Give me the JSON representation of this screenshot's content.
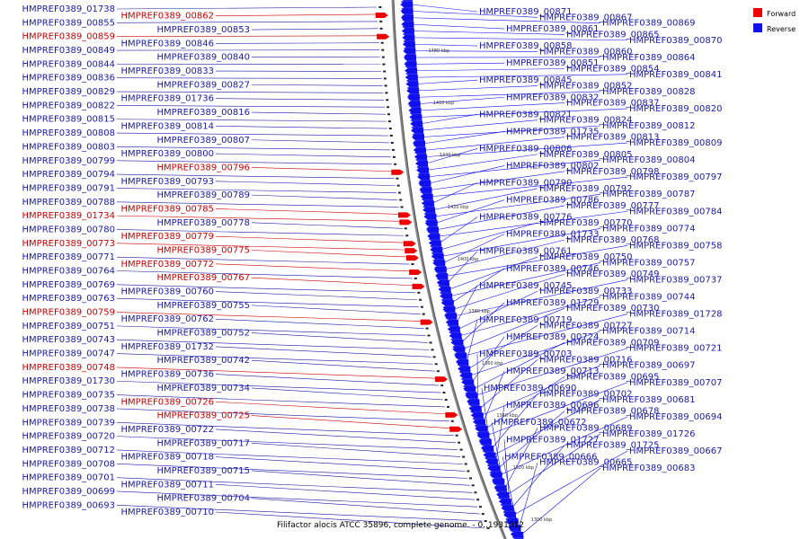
{
  "caption": "Filifactor alocis ATCC 35896, complete genome. - 0..1931012",
  "colors": {
    "forward": "#ee0000",
    "reverse": "#1010ee",
    "forward_text": "#cc0000",
    "reverse_text": "#1a1aaa",
    "backbone": "#888888"
  },
  "legend": [
    {
      "label": "Forward",
      "color": "#ee0000"
    },
    {
      "label": "Reverse",
      "color": "#1010ee"
    }
  ],
  "ticks": [
    "1480 kbp",
    "1460 kbp",
    "1440 kbp",
    "1420 kbp",
    "1400 kbp",
    "1380 kbp",
    "1360 kbp",
    "1340 kbp",
    "1320 kbp",
    "1300 kbp"
  ],
  "genes_left": [
    {
      "name": "HMPREF0389_01738",
      "strand": "reverse"
    },
    {
      "name": "HMPREF0389_00862",
      "strand": "forward"
    },
    {
      "name": "HMPREF0389_00855",
      "strand": "reverse"
    },
    {
      "name": "HMPREF0389_00853",
      "strand": "reverse"
    },
    {
      "name": "HMPREF0389_00859",
      "strand": "forward"
    },
    {
      "name": "HMPREF0389_00846",
      "strand": "reverse"
    },
    {
      "name": "HMPREF0389_00849",
      "strand": "reverse"
    },
    {
      "name": "HMPREF0389_00840",
      "strand": "reverse"
    },
    {
      "name": "HMPREF0389_00844",
      "strand": "reverse"
    },
    {
      "name": "HMPREF0389_00833",
      "strand": "reverse"
    },
    {
      "name": "HMPREF0389_00836",
      "strand": "reverse"
    },
    {
      "name": "HMPREF0389_00827",
      "strand": "reverse"
    },
    {
      "name": "HMPREF0389_00829",
      "strand": "reverse"
    },
    {
      "name": "HMPREF0389_01736",
      "strand": "reverse"
    },
    {
      "name": "HMPREF0389_00822",
      "strand": "reverse"
    },
    {
      "name": "HMPREF0389_00816",
      "strand": "reverse"
    },
    {
      "name": "HMPREF0389_00815",
      "strand": "reverse"
    },
    {
      "name": "HMPREF0389_00814",
      "strand": "reverse"
    },
    {
      "name": "HMPREF0389_00808",
      "strand": "reverse"
    },
    {
      "name": "HMPREF0389_00807",
      "strand": "reverse"
    },
    {
      "name": "HMPREF0389_00803",
      "strand": "reverse"
    },
    {
      "name": "HMPREF0389_00800",
      "strand": "reverse"
    },
    {
      "name": "HMPREF0389_00799",
      "strand": "reverse"
    },
    {
      "name": "HMPREF0389_00796",
      "strand": "forward"
    },
    {
      "name": "HMPREF0389_00794",
      "strand": "reverse"
    },
    {
      "name": "HMPREF0389_00793",
      "strand": "reverse"
    },
    {
      "name": "HMPREF0389_00791",
      "strand": "reverse"
    },
    {
      "name": "HMPREF0389_00789",
      "strand": "reverse"
    },
    {
      "name": "HMPREF0389_00788",
      "strand": "reverse"
    },
    {
      "name": "HMPREF0389_00785",
      "strand": "forward"
    },
    {
      "name": "HMPREF0389_01734",
      "strand": "forward"
    },
    {
      "name": "HMPREF0389_00778",
      "strand": "reverse"
    },
    {
      "name": "HMPREF0389_00780",
      "strand": "reverse"
    },
    {
      "name": "HMPREF0389_00779",
      "strand": "forward"
    },
    {
      "name": "HMPREF0389_00773",
      "strand": "forward"
    },
    {
      "name": "HMPREF0389_00775",
      "strand": "forward"
    },
    {
      "name": "HMPREF0389_00771",
      "strand": "reverse"
    },
    {
      "name": "HMPREF0389_00772",
      "strand": "forward"
    },
    {
      "name": "HMPREF0389_00764",
      "strand": "reverse"
    },
    {
      "name": "HMPREF0389_00767",
      "strand": "forward"
    },
    {
      "name": "HMPREF0389_00769",
      "strand": "reverse"
    },
    {
      "name": "HMPREF0389_00760",
      "strand": "reverse"
    },
    {
      "name": "HMPREF0389_00763",
      "strand": "reverse"
    },
    {
      "name": "HMPREF0389_00755",
      "strand": "reverse"
    },
    {
      "name": "HMPREF0389_00759",
      "strand": "forward"
    },
    {
      "name": "HMPREF0389_00762",
      "strand": "reverse"
    },
    {
      "name": "HMPREF0389_00751",
      "strand": "reverse"
    },
    {
      "name": "HMPREF0389_00752",
      "strand": "reverse"
    },
    {
      "name": "HMPREF0389_00743",
      "strand": "reverse"
    },
    {
      "name": "HMPREF0389_01732",
      "strand": "reverse"
    },
    {
      "name": "HMPREF0389_00747",
      "strand": "reverse"
    },
    {
      "name": "HMPREF0389_00742",
      "strand": "reverse"
    },
    {
      "name": "HMPREF0389_00748",
      "strand": "forward"
    },
    {
      "name": "HMPREF0389_00736",
      "strand": "reverse"
    },
    {
      "name": "HMPREF0389_01730",
      "strand": "reverse"
    },
    {
      "name": "HMPREF0389_00734",
      "strand": "reverse"
    },
    {
      "name": "HMPREF0389_00735",
      "strand": "reverse"
    },
    {
      "name": "HMPREF0389_00726",
      "strand": "forward"
    },
    {
      "name": "HMPREF0389_00738",
      "strand": "reverse"
    },
    {
      "name": "HMPREF0389_00725",
      "strand": "forward"
    },
    {
      "name": "HMPREF0389_00739",
      "strand": "reverse"
    },
    {
      "name": "HMPREF0389_00722",
      "strand": "reverse"
    },
    {
      "name": "HMPREF0389_00720",
      "strand": "reverse"
    },
    {
      "name": "HMPREF0389_00717",
      "strand": "reverse"
    },
    {
      "name": "HMPREF0389_00712",
      "strand": "reverse"
    },
    {
      "name": "HMPREF0389_00718",
      "strand": "reverse"
    },
    {
      "name": "HMPREF0389_00708",
      "strand": "reverse"
    },
    {
      "name": "HMPREF0389_00715",
      "strand": "reverse"
    },
    {
      "name": "HMPREF0389_00701",
      "strand": "reverse"
    },
    {
      "name": "HMPREF0389_00711",
      "strand": "reverse"
    },
    {
      "name": "HMPREF0389_00699",
      "strand": "reverse"
    },
    {
      "name": "HMPREF0389_00704",
      "strand": "reverse"
    },
    {
      "name": "HMPREF0389_00693",
      "strand": "reverse"
    },
    {
      "name": "HMPREF0389_00710",
      "strand": "reverse"
    }
  ],
  "genes_right": [
    {
      "name": "HMPREF0389_00871",
      "strand": "reverse"
    },
    {
      "name": "HMPREF0389_00867",
      "strand": "reverse"
    },
    {
      "name": "HMPREF0389_00869",
      "strand": "reverse"
    },
    {
      "name": "HMPREF0389_00861",
      "strand": "reverse"
    },
    {
      "name": "HMPREF0389_00865",
      "strand": "reverse"
    },
    {
      "name": "HMPREF0389_00870",
      "strand": "reverse"
    },
    {
      "name": "HMPREF0389_00858",
      "strand": "reverse"
    },
    {
      "name": "HMPREF0389_00860",
      "strand": "reverse"
    },
    {
      "name": "HMPREF0389_00864",
      "strand": "reverse"
    },
    {
      "name": "HMPREF0389_00851",
      "strand": "reverse"
    },
    {
      "name": "HMPREF0389_00854",
      "strand": "reverse"
    },
    {
      "name": "HMPREF0389_00841",
      "strand": "reverse"
    },
    {
      "name": "HMPREF0389_00845",
      "strand": "reverse"
    },
    {
      "name": "HMPREF0389_00852",
      "strand": "reverse"
    },
    {
      "name": "HMPREF0389_00828",
      "strand": "reverse"
    },
    {
      "name": "HMPREF0389_00832",
      "strand": "reverse"
    },
    {
      "name": "HMPREF0389_00837",
      "strand": "reverse"
    },
    {
      "name": "HMPREF0389_00820",
      "strand": "reverse"
    },
    {
      "name": "HMPREF0389_00821",
      "strand": "reverse"
    },
    {
      "name": "HMPREF0389_00824",
      "strand": "reverse"
    },
    {
      "name": "HMPREF0389_00812",
      "strand": "reverse"
    },
    {
      "name": "HMPREF0389_01735",
      "strand": "reverse"
    },
    {
      "name": "HMPREF0389_00813",
      "strand": "reverse"
    },
    {
      "name": "HMPREF0389_00809",
      "strand": "reverse"
    },
    {
      "name": "HMPREF0389_00806",
      "strand": "reverse"
    },
    {
      "name": "HMPREF0389_00805",
      "strand": "reverse"
    },
    {
      "name": "HMPREF0389_00804",
      "strand": "reverse"
    },
    {
      "name": "HMPREF0389_00802",
      "strand": "reverse"
    },
    {
      "name": "HMPREF0389_00798",
      "strand": "reverse"
    },
    {
      "name": "HMPREF0389_00797",
      "strand": "reverse"
    },
    {
      "name": "HMPREF0389_00790",
      "strand": "reverse"
    },
    {
      "name": "HMPREF0389_00792",
      "strand": "reverse"
    },
    {
      "name": "HMPREF0389_00787",
      "strand": "reverse"
    },
    {
      "name": "HMPREF0389_00786",
      "strand": "reverse"
    },
    {
      "name": "HMPREF0389_00777",
      "strand": "reverse"
    },
    {
      "name": "HMPREF0389_00784",
      "strand": "reverse"
    },
    {
      "name": "HMPREF0389_00776",
      "strand": "reverse"
    },
    {
      "name": "HMPREF0389_00770",
      "strand": "reverse"
    },
    {
      "name": "HMPREF0389_00774",
      "strand": "reverse"
    },
    {
      "name": "HMPREF0389_01733",
      "strand": "reverse"
    },
    {
      "name": "HMPREF0389_00768",
      "strand": "reverse"
    },
    {
      "name": "HMPREF0389_00758",
      "strand": "reverse"
    },
    {
      "name": "HMPREF0389_00761",
      "strand": "reverse"
    },
    {
      "name": "HMPREF0389_00750",
      "strand": "reverse"
    },
    {
      "name": "HMPREF0389_00757",
      "strand": "reverse"
    },
    {
      "name": "HMPREF0389_00746",
      "strand": "reverse"
    },
    {
      "name": "HMPREF0389_00749",
      "strand": "reverse"
    },
    {
      "name": "HMPREF0389_00737",
      "strand": "reverse"
    },
    {
      "name": "HMPREF0389_00745",
      "strand": "reverse"
    },
    {
      "name": "HMPREF0389_00733",
      "strand": "reverse"
    },
    {
      "name": "HMPREF0389_00744",
      "strand": "reverse"
    },
    {
      "name": "HMPREF0389_01729",
      "strand": "reverse"
    },
    {
      "name": "HMPREF0389_00730",
      "strand": "reverse"
    },
    {
      "name": "HMPREF0389_01728",
      "strand": "reverse"
    },
    {
      "name": "HMPREF0389_00719",
      "strand": "reverse"
    },
    {
      "name": "HMPREF0389_00727",
      "strand": "reverse"
    },
    {
      "name": "HMPREF0389_00714",
      "strand": "reverse"
    },
    {
      "name": "HMPREF0389_00724",
      "strand": "reverse"
    },
    {
      "name": "HMPREF0389_00709",
      "strand": "reverse"
    },
    {
      "name": "HMPREF0389_00721",
      "strand": "reverse"
    },
    {
      "name": "HMPREF0389_00703",
      "strand": "reverse"
    },
    {
      "name": "HMPREF0389_00716",
      "strand": "reverse"
    },
    {
      "name": "HMPREF0389_00697",
      "strand": "reverse"
    },
    {
      "name": "HMPREF0389_00713",
      "strand": "reverse"
    },
    {
      "name": "HMPREF0389_00695",
      "strand": "reverse"
    },
    {
      "name": "HMPREF0389_00707",
      "strand": "reverse"
    },
    {
      "name": "HMPREF0389_00690",
      "strand": "reverse"
    },
    {
      "name": "HMPREF0389_00702",
      "strand": "reverse"
    },
    {
      "name": "HMPREF0389_00681",
      "strand": "reverse"
    },
    {
      "name": "HMPREF0389_00696",
      "strand": "reverse"
    },
    {
      "name": "HMPREF0389_00678",
      "strand": "reverse"
    },
    {
      "name": "HMPREF0389_00694",
      "strand": "reverse"
    },
    {
      "name": "HMPREF0389_00672",
      "strand": "reverse"
    },
    {
      "name": "HMPREF0389_00689",
      "strand": "reverse"
    },
    {
      "name": "HMPREF0389_01726",
      "strand": "reverse"
    },
    {
      "name": "HMPREF0389_01727",
      "strand": "reverse"
    },
    {
      "name": "HMPREF0389_01725",
      "strand": "reverse"
    },
    {
      "name": "HMPREF0389_00667",
      "strand": "reverse"
    },
    {
      "name": "HMPREF0389_00666",
      "strand": "reverse"
    },
    {
      "name": "HMPREF0389_00665",
      "strand": "reverse"
    },
    {
      "name": "HMPREF0389_00683",
      "strand": "reverse"
    }
  ]
}
